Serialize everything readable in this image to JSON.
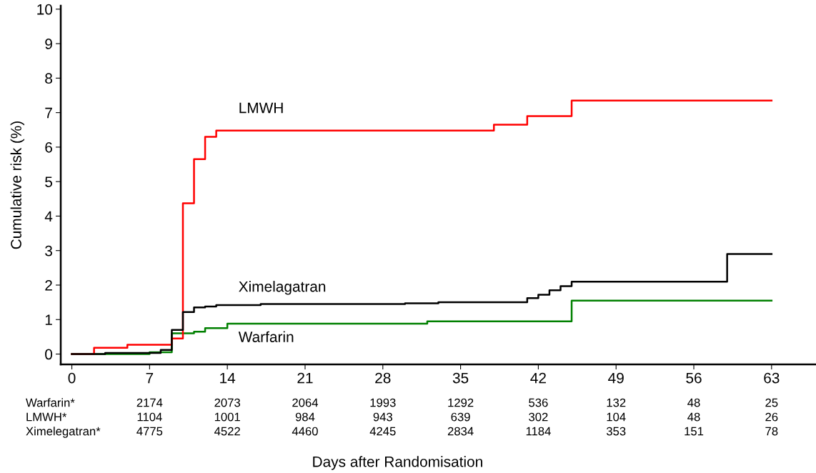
{
  "chart_data": {
    "type": "step",
    "xlabel": "Days after Randomisation",
    "ylabel": "Cumulative risk (%)",
    "xlim": [
      -1,
      67
    ],
    "ylim": [
      -0.3,
      10.1
    ],
    "xticks": [
      0,
      7,
      14,
      21,
      28,
      35,
      42,
      49,
      56,
      63
    ],
    "yticks": [
      0,
      1,
      2,
      3,
      4,
      5,
      6,
      7,
      8,
      9,
      10
    ],
    "grid": false,
    "legend": false,
    "series": [
      {
        "name": "Warfarin",
        "color": "#008000",
        "x": [
          0,
          7,
          9,
          11,
          12,
          14,
          32,
          45,
          63
        ],
        "values": [
          0,
          0.05,
          0.6,
          0.65,
          0.75,
          0.88,
          0.95,
          1.55,
          1.55
        ]
      },
      {
        "name": "LMWH",
        "color": "#ff0000",
        "x": [
          0,
          2,
          5,
          9,
          10,
          11,
          12,
          13,
          38,
          41,
          45,
          63
        ],
        "values": [
          0,
          0.18,
          0.27,
          0.45,
          4.37,
          5.65,
          6.3,
          6.48,
          6.65,
          6.9,
          7.35,
          7.35
        ]
      },
      {
        "name": "Ximelagatran",
        "color": "#000000",
        "x": [
          0,
          3,
          8,
          9,
          10,
          11,
          12,
          13,
          17,
          30,
          33,
          41,
          42,
          43,
          44,
          45,
          59,
          63
        ],
        "values": [
          0,
          0.03,
          0.12,
          0.7,
          1.22,
          1.35,
          1.38,
          1.42,
          1.45,
          1.47,
          1.5,
          1.62,
          1.72,
          1.85,
          1.97,
          2.1,
          2.9,
          2.9
        ]
      }
    ],
    "annotations": [
      "Warfarin*",
      "2174",
      "2073",
      "2064",
      "1993",
      "1292",
      "536",
      "132",
      "48",
      "25",
      "LMWH*",
      "1104",
      "1001",
      "984",
      "943",
      "639",
      "302",
      "104",
      "48",
      "26",
      "Ximelegatran*",
      "4775",
      "4522",
      "4460",
      "4245",
      "2834",
      "1184",
      "353",
      "151",
      "78"
    ]
  }
}
